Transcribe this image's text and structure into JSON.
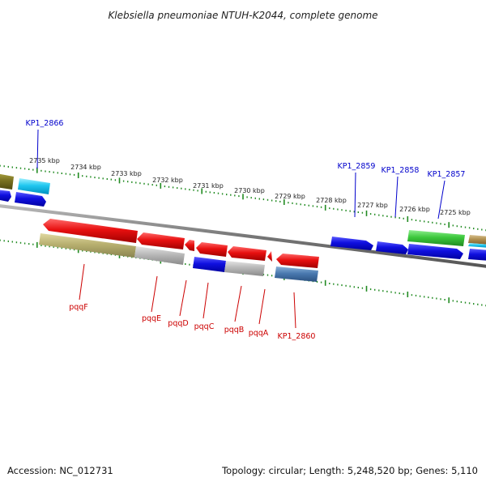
{
  "title": "Klebsiella pneumoniae NTUH-K2044, complete genome",
  "footer": {
    "accession": "Accession: NC_012731",
    "summary": "Topology: circular; Length: 5,248,520 bp; Genes: 5,110"
  },
  "scale": {
    "kbp_labels": [
      "2735 kbp",
      "2734 kbp",
      "2733 kbp",
      "2732 kbp",
      "2731 kbp",
      "2730 kbp",
      "2729 kbp",
      "2728 kbp",
      "2727 kbp",
      "2726 kbp",
      "2725 kbp"
    ]
  },
  "upper_labels": [
    "KP1_2866",
    "KP1_2859",
    "KP1_2858",
    "KP1_2857"
  ],
  "lower_labels": [
    "pqqF",
    "pqqE",
    "pqqD",
    "pqqC",
    "pqqB",
    "pqqA",
    "KP1_2860"
  ],
  "colors": {
    "upper_label": "#0000cc",
    "lower_label": "#cc0000",
    "tick": "#228b22",
    "backbone": "#888888",
    "red_gene": "#e81010",
    "blue_gene": "#1010e0",
    "cyan_gene": "#20c8f0",
    "green_gene": "#3cc83c",
    "olive_gene": "#b8b070",
    "gray_gene": "#b8b8b8",
    "steel_gene": "#4a7ab0"
  }
}
